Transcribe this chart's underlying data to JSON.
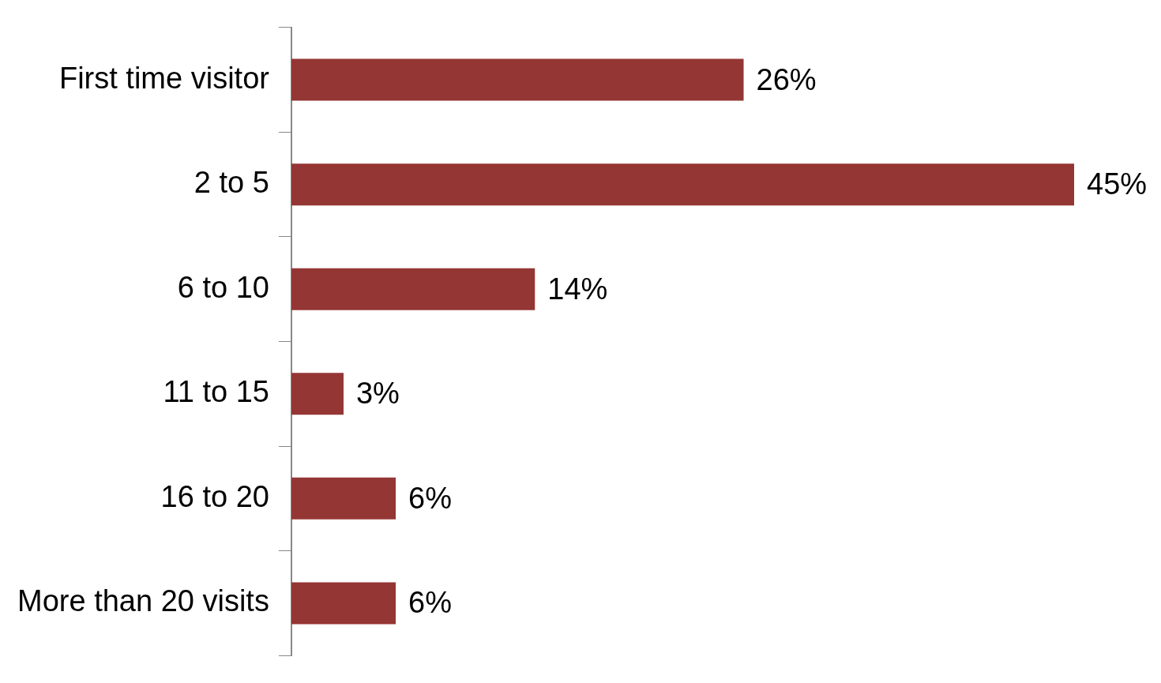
{
  "chart_data": {
    "type": "bar",
    "orientation": "horizontal",
    "categories": [
      "First time visitor",
      "2 to 5",
      "6 to 10",
      "11 to 15",
      "16 to 20",
      "More than 20 visits"
    ],
    "values": [
      26,
      45,
      14,
      3,
      6,
      6
    ],
    "value_labels": [
      "26%",
      "45%",
      "14%",
      "3%",
      "6%",
      "6%"
    ],
    "color": "#943634",
    "grid": false,
    "legend": false
  }
}
